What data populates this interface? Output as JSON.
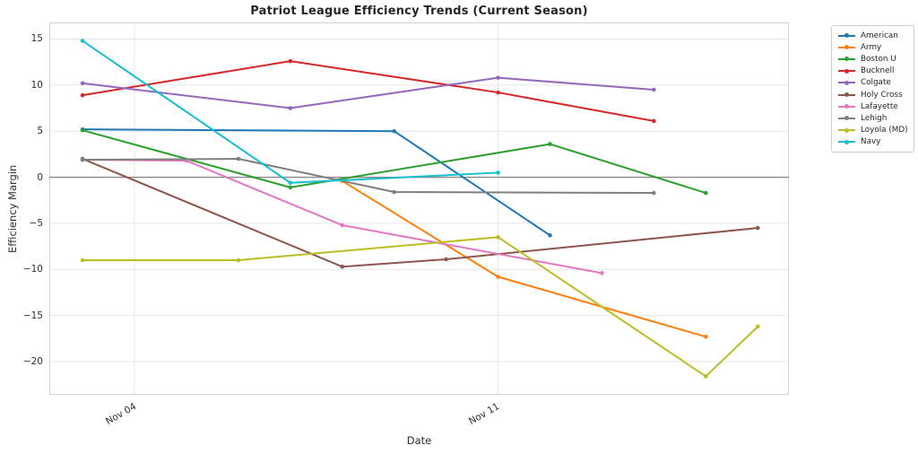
{
  "chart_data": {
    "type": "line",
    "title": "Patriot League Efficiency Trends (Current Season)",
    "xlabel": "Date",
    "ylabel": "Efficiency Margin",
    "grid": true,
    "legend_position": "outside-right-top",
    "dates": [
      "Nov 03",
      "Nov 04",
      "Nov 05",
      "Nov 06",
      "Nov 07",
      "Nov 08",
      "Nov 09",
      "Nov 10",
      "Nov 11",
      "Nov 12",
      "Nov 13",
      "Nov 14",
      "Nov 15",
      "Nov 16"
    ],
    "x_ticks": [
      {
        "day": 1,
        "label": "Nov 04"
      },
      {
        "day": 8,
        "label": "Nov 11"
      }
    ],
    "y_ticks": [
      {
        "value": 15,
        "label": "15"
      },
      {
        "value": 10,
        "label": "10"
      },
      {
        "value": 5,
        "label": "5"
      },
      {
        "value": 0,
        "label": "0"
      },
      {
        "value": -5,
        "label": "−5"
      },
      {
        "value": -10,
        "label": "−10"
      },
      {
        "value": -15,
        "label": "−15"
      },
      {
        "value": -20,
        "label": "−20"
      }
    ],
    "xlim_days": [
      -0.64,
      13.6
    ],
    "ylim": [
      -23.6,
      16.8
    ],
    "zero_line_value": 0,
    "colors": {
      "grid": "#e7e7e7",
      "plot_border": "#d4d4d4",
      "zero_line": "#8a8a8a",
      "tick_text": "#303030",
      "title_text": "#262626"
    },
    "series": [
      {
        "name": "American",
        "color": "#1f77b4",
        "points": [
          {
            "date": "Nov 03",
            "value": 5.2
          },
          {
            "date": "Nov 09",
            "value": 5.0
          },
          {
            "date": "Nov 12",
            "value": -6.3
          }
        ]
      },
      {
        "name": "Army",
        "color": "#ff7f0e",
        "points": [
          {
            "date": "Nov 08",
            "value": -0.4
          },
          {
            "date": "Nov 11",
            "value": -10.8
          },
          {
            "date": "Nov 15",
            "value": -17.3
          }
        ]
      },
      {
        "name": "Boston U",
        "color": "#2ca02c",
        "points": [
          {
            "date": "Nov 03",
            "value": 5.1
          },
          {
            "date": "Nov 07",
            "value": -1.1
          },
          {
            "date": "Nov 12",
            "value": 3.6
          },
          {
            "date": "Nov 15",
            "value": -1.7
          }
        ]
      },
      {
        "name": "Bucknell",
        "color": "#d62728",
        "points": [
          {
            "date": "Nov 03",
            "value": 8.9
          },
          {
            "date": "Nov 07",
            "value": 12.6
          },
          {
            "date": "Nov 11",
            "value": 9.2
          },
          {
            "date": "Nov 14",
            "value": 6.1
          }
        ]
      },
      {
        "name": "Colgate",
        "color": "#9467bd",
        "points": [
          {
            "date": "Nov 03",
            "value": 10.2
          },
          {
            "date": "Nov 07",
            "value": 7.5
          },
          {
            "date": "Nov 11",
            "value": 10.8
          },
          {
            "date": "Nov 14",
            "value": 9.5
          }
        ]
      },
      {
        "name": "Holy Cross",
        "color": "#8c564b",
        "points": [
          {
            "date": "Nov 03",
            "value": 2.0
          },
          {
            "date": "Nov 08",
            "value": -9.7
          },
          {
            "date": "Nov 10",
            "value": -8.9
          },
          {
            "date": "Nov 16",
            "value": -5.5
          }
        ]
      },
      {
        "name": "Lafayette",
        "color": "#e377c2",
        "points": [
          {
            "date": "Nov 03",
            "value": 1.9
          },
          {
            "date": "Nov 05",
            "value": 1.8
          },
          {
            "date": "Nov 08",
            "value": -5.2
          },
          {
            "date": "Nov 13",
            "value": -10.4
          }
        ]
      },
      {
        "name": "Lehigh",
        "color": "#7f7f7f",
        "points": [
          {
            "date": "Nov 03",
            "value": 1.9
          },
          {
            "date": "Nov 06",
            "value": 2.0
          },
          {
            "date": "Nov 09",
            "value": -1.6
          },
          {
            "date": "Nov 14",
            "value": -1.7
          }
        ]
      },
      {
        "name": "Loyola (MD)",
        "color": "#bcbd22",
        "points": [
          {
            "date": "Nov 03",
            "value": -9.0
          },
          {
            "date": "Nov 06",
            "value": -9.0
          },
          {
            "date": "Nov 11",
            "value": -6.5
          },
          {
            "date": "Nov 15",
            "value": -21.6
          },
          {
            "date": "Nov 16",
            "value": -16.2
          }
        ]
      },
      {
        "name": "Navy",
        "color": "#17becf",
        "points": [
          {
            "date": "Nov 03",
            "value": 14.8
          },
          {
            "date": "Nov 07",
            "value": -0.6
          },
          {
            "date": "Nov 11",
            "value": 0.5
          }
        ]
      }
    ]
  }
}
